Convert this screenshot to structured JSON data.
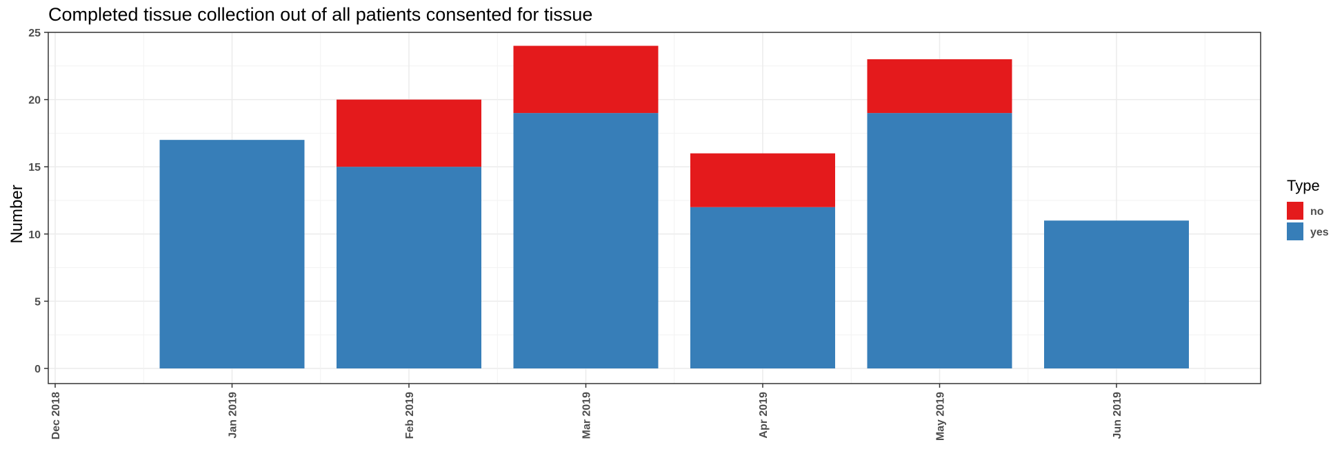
{
  "chart_data": {
    "type": "bar",
    "stacked": true,
    "title": "Completed tissue collection out of all patients consented for tissue",
    "xlabel": "",
    "ylabel": "Number",
    "x_ticks": [
      "Dec 2018",
      "Jan 2019",
      "Feb 2019",
      "Mar 2019",
      "Apr 2019",
      "May 2019",
      "Jun 2019"
    ],
    "categories": [
      "Jan 2019",
      "Feb 2019",
      "Mar 2019",
      "Apr 2019",
      "May 2019",
      "Jun 2019"
    ],
    "series": [
      {
        "name": "yes",
        "color": "#377eb8",
        "values": [
          17,
          15,
          19,
          12,
          19,
          11
        ]
      },
      {
        "name": "no",
        "color": "#e41a1c",
        "values": [
          0,
          5,
          5,
          4,
          4,
          0
        ]
      }
    ],
    "ylim": [
      0,
      25
    ],
    "y_ticks": [
      0,
      5,
      10,
      15,
      20,
      25
    ],
    "grid": true,
    "legend": {
      "title": "Type",
      "position": "right",
      "entries": [
        {
          "label": "no",
          "color": "#e41a1c"
        },
        {
          "label": "yes",
          "color": "#377eb8"
        }
      ]
    }
  }
}
